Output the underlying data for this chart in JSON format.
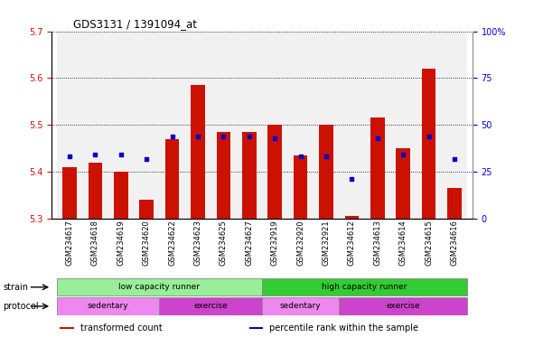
{
  "title": "GDS3131 / 1391094_at",
  "samples": [
    "GSM234617",
    "GSM234618",
    "GSM234619",
    "GSM234620",
    "GSM234622",
    "GSM234623",
    "GSM234625",
    "GSM234627",
    "GSM232919",
    "GSM232920",
    "GSM232921",
    "GSM234612",
    "GSM234613",
    "GSM234614",
    "GSM234615",
    "GSM234616"
  ],
  "red_values": [
    5.41,
    5.42,
    5.4,
    5.34,
    5.47,
    5.585,
    5.485,
    5.485,
    5.5,
    5.435,
    5.5,
    5.305,
    5.515,
    5.45,
    5.62,
    5.365
  ],
  "blue_values_pct": [
    33,
    34,
    34,
    32,
    44,
    44,
    44,
    44,
    43,
    33,
    33,
    21,
    43,
    34,
    44,
    32
  ],
  "ylim_left": [
    5.3,
    5.7
  ],
  "ylim_right": [
    0,
    100
  ],
  "yticks_left": [
    5.3,
    5.4,
    5.5,
    5.6,
    5.7
  ],
  "yticks_right": [
    0,
    25,
    50,
    75,
    100
  ],
  "ytick_labels_right": [
    "0",
    "25",
    "50",
    "75",
    "100%"
  ],
  "bar_bottom": 5.3,
  "bar_color": "#cc1100",
  "blue_color": "#0000cc",
  "grid_color": "#000000",
  "bg_color": "#ffffff",
  "strain_groups": [
    {
      "label": "low capacity runner",
      "start": 0,
      "end": 8,
      "color": "#99ee99"
    },
    {
      "label": "high capacity runner",
      "start": 8,
      "end": 16,
      "color": "#33cc33"
    }
  ],
  "protocol_groups": [
    {
      "label": "sedentary",
      "start": 0,
      "end": 4,
      "color": "#ee88ee"
    },
    {
      "label": "exercise",
      "start": 4,
      "end": 8,
      "color": "#cc44cc"
    },
    {
      "label": "sedentary",
      "start": 8,
      "end": 11,
      "color": "#ee88ee"
    },
    {
      "label": "exercise",
      "start": 11,
      "end": 16,
      "color": "#cc44cc"
    }
  ],
  "legend_items": [
    {
      "color": "#cc1100",
      "label": "transformed count"
    },
    {
      "color": "#0000cc",
      "label": "percentile rank within the sample"
    }
  ],
  "strain_label": "strain",
  "protocol_label": "protocol",
  "bar_width": 0.55
}
